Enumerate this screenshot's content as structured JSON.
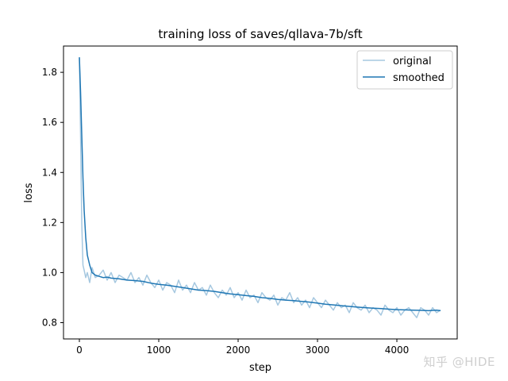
{
  "chart_data": {
    "type": "line",
    "title": "training loss of saves/qllava-7b/sft",
    "xlabel": "step",
    "ylabel": "loss",
    "xlim": [
      -200,
      4760
    ],
    "ylim": [
      0.735,
      1.905
    ],
    "xticks": [
      0,
      1000,
      2000,
      3000,
      4000
    ],
    "xtick_labels": [
      "0",
      "1000",
      "2000",
      "3000",
      "4000"
    ],
    "yticks": [
      0.8,
      1.0,
      1.2,
      1.4,
      1.6,
      1.8
    ],
    "ytick_labels": [
      "0.8",
      "1.0",
      "1.2",
      "1.4",
      "1.6",
      "1.8"
    ],
    "grid": false,
    "legend_location": "upper right",
    "series": [
      {
        "name": "original",
        "color": "#a6c8e0",
        "x": [
          0,
          15,
          30,
          45,
          60,
          80,
          100,
          130,
          160,
          200,
          250,
          300,
          350,
          400,
          450,
          500,
          550,
          600,
          650,
          700,
          750,
          800,
          850,
          900,
          950,
          1000,
          1050,
          1100,
          1150,
          1200,
          1250,
          1300,
          1350,
          1400,
          1450,
          1500,
          1550,
          1600,
          1650,
          1700,
          1750,
          1800,
          1850,
          1900,
          1950,
          2000,
          2050,
          2100,
          2150,
          2200,
          2250,
          2300,
          2350,
          2400,
          2450,
          2500,
          2550,
          2600,
          2650,
          2700,
          2750,
          2800,
          2850,
          2900,
          2950,
          3000,
          3050,
          3100,
          3150,
          3200,
          3250,
          3300,
          3350,
          3400,
          3450,
          3500,
          3550,
          3600,
          3650,
          3700,
          3750,
          3800,
          3850,
          3900,
          3950,
          4000,
          4050,
          4100,
          4150,
          4200,
          4250,
          4300,
          4350,
          4400,
          4450,
          4500,
          4550
        ],
        "values": [
          1.86,
          1.55,
          1.2,
          1.03,
          1.01,
          0.98,
          1.0,
          0.96,
          1.02,
          0.98,
          0.99,
          1.01,
          0.97,
          1.0,
          0.96,
          0.99,
          0.98,
          0.97,
          1.0,
          0.96,
          0.98,
          0.95,
          0.99,
          0.96,
          0.94,
          0.97,
          0.93,
          0.96,
          0.95,
          0.92,
          0.97,
          0.93,
          0.95,
          0.92,
          0.96,
          0.93,
          0.94,
          0.91,
          0.95,
          0.92,
          0.9,
          0.93,
          0.91,
          0.94,
          0.9,
          0.92,
          0.89,
          0.93,
          0.9,
          0.91,
          0.88,
          0.92,
          0.9,
          0.89,
          0.91,
          0.87,
          0.9,
          0.89,
          0.92,
          0.88,
          0.9,
          0.87,
          0.89,
          0.86,
          0.9,
          0.88,
          0.86,
          0.89,
          0.87,
          0.85,
          0.88,
          0.86,
          0.87,
          0.84,
          0.88,
          0.86,
          0.85,
          0.87,
          0.84,
          0.86,
          0.85,
          0.83,
          0.87,
          0.85,
          0.84,
          0.86,
          0.83,
          0.85,
          0.86,
          0.84,
          0.82,
          0.86,
          0.85,
          0.83,
          0.86,
          0.84,
          0.85
        ]
      },
      {
        "name": "smoothed",
        "color": "#1f77b4",
        "x": [
          0,
          15,
          30,
          45,
          60,
          80,
          100,
          130,
          160,
          200,
          250,
          300,
          350,
          400,
          500,
          600,
          700,
          800,
          900,
          1000,
          1100,
          1200,
          1300,
          1400,
          1500,
          1600,
          1700,
          1800,
          1900,
          2000,
          2100,
          2200,
          2300,
          2400,
          2500,
          2600,
          2700,
          2800,
          2900,
          3000,
          3100,
          3200,
          3300,
          3400,
          3500,
          3600,
          3700,
          3800,
          3900,
          4000,
          4100,
          4200,
          4300,
          4400,
          4500,
          4550
        ],
        "values": [
          1.86,
          1.72,
          1.55,
          1.38,
          1.25,
          1.14,
          1.07,
          1.03,
          1.0,
          0.99,
          0.985,
          0.98,
          0.982,
          0.978,
          0.975,
          0.97,
          0.968,
          0.965,
          0.958,
          0.953,
          0.95,
          0.945,
          0.94,
          0.935,
          0.93,
          0.928,
          0.925,
          0.92,
          0.915,
          0.912,
          0.908,
          0.905,
          0.9,
          0.897,
          0.893,
          0.89,
          0.888,
          0.885,
          0.882,
          0.878,
          0.874,
          0.871,
          0.868,
          0.865,
          0.862,
          0.86,
          0.858,
          0.856,
          0.854,
          0.852,
          0.851,
          0.85,
          0.849,
          0.848,
          0.85,
          0.848
        ]
      }
    ]
  },
  "watermark": "知乎 @HIDE"
}
